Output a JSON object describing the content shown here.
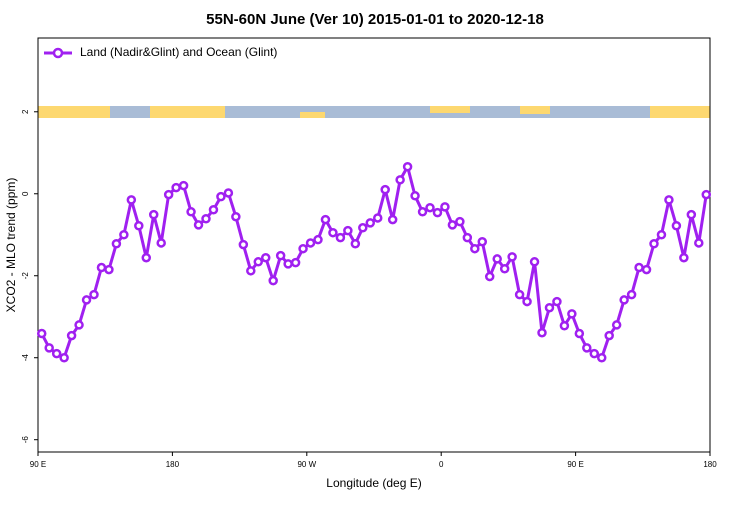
{
  "chart_data": {
    "type": "line",
    "title": "55N-60N June (Ver 10)   2015-01-01 to 2020-12-18",
    "xlabel": "Longitude (deg E)",
    "ylabel": "XCO2 - MLO trend (ppm)",
    "legend": "top-left",
    "x": [
      92.5,
      97.5,
      102.5,
      107.5,
      112.5,
      117.5,
      122.5,
      127.5,
      132.5,
      137.5,
      142.5,
      147.5,
      152.5,
      157.5,
      162.5,
      167.5,
      172.5,
      177.5,
      182.5,
      187.5,
      192.5,
      197.5,
      202.5,
      207.5,
      212.5,
      217.5,
      222.5,
      227.5,
      232.5,
      237.5,
      242.5,
      247.5,
      252.5,
      257.5,
      262.5,
      267.5,
      272.5,
      277.5,
      282.5,
      287.5,
      292.5,
      297.5,
      302.5,
      307.5,
      312.5,
      317.5,
      322.5,
      327.5,
      332.5,
      337.5,
      342.5,
      347.5,
      352.5,
      357.5,
      362.5,
      367.5,
      372.5,
      377.5,
      382.5,
      387.5,
      392.5,
      397.5,
      402.5,
      407.5,
      412.5,
      417.5,
      422.5,
      427.5,
      432.5,
      437.5,
      442.5,
      447.5,
      452.5,
      457.5,
      462.5,
      467.5,
      472.5,
      477.5,
      482.5,
      487.5,
      492.5,
      497.5,
      502.5,
      507.5,
      512.5,
      517.5,
      522.5,
      527.5,
      532.5,
      537.5
    ],
    "series": [
      {
        "name": "Land (Nadir&Glint) and Ocean (Glint)",
        "color": "#a020f0",
        "values": [
          -3.41,
          -3.76,
          -3.9,
          -4.0,
          -3.46,
          -3.2,
          -2.59,
          -2.46,
          -1.8,
          -1.85,
          -1.22,
          -1.0,
          -0.15,
          -0.78,
          -1.56,
          -0.51,
          -1.2,
          -0.02,
          0.15,
          0.2,
          -0.44,
          -0.76,
          -0.61,
          -0.39,
          -0.07,
          0.02,
          -0.56,
          -1.24,
          -1.88,
          -1.66,
          -1.56,
          -2.12,
          -1.51,
          -1.71,
          -1.68,
          -1.34,
          -1.2,
          -1.12,
          -0.63,
          -0.95,
          -1.07,
          -0.9,
          -1.22,
          -0.83,
          -0.71,
          -0.59,
          0.1,
          -0.63,
          0.34,
          0.66,
          -0.05,
          -0.44,
          -0.34,
          -0.46,
          -0.32,
          -0.76,
          -0.68,
          -1.07,
          -1.34,
          -1.17,
          -2.02,
          -1.59,
          -1.83,
          -1.54,
          -2.46,
          -2.63,
          -1.66,
          -3.39,
          -2.78,
          -2.63,
          -3.22,
          -2.93,
          -3.41,
          -3.76,
          -3.9,
          -4.0,
          -3.46,
          -3.2,
          -2.59,
          -2.46,
          -1.8,
          -1.85,
          -1.22,
          -1.0,
          -0.15,
          -0.78,
          -1.56,
          -0.51,
          -1.2,
          -0.02
        ]
      }
    ],
    "xlim": [
      90,
      540
    ],
    "xticks": [
      {
        "value": 90,
        "label": "90 E"
      },
      180,
      {
        "value": 270,
        "label": "90 W"
      },
      {
        "value": 360,
        "label": "0"
      },
      {
        "value": 450,
        "label": "90 E"
      },
      {
        "value": 540,
        "label": "180"
      }
    ],
    "ylim": [
      -6.3,
      3.8
    ],
    "yticks": [
      -6,
      -4,
      -2,
      0,
      2
    ]
  }
}
